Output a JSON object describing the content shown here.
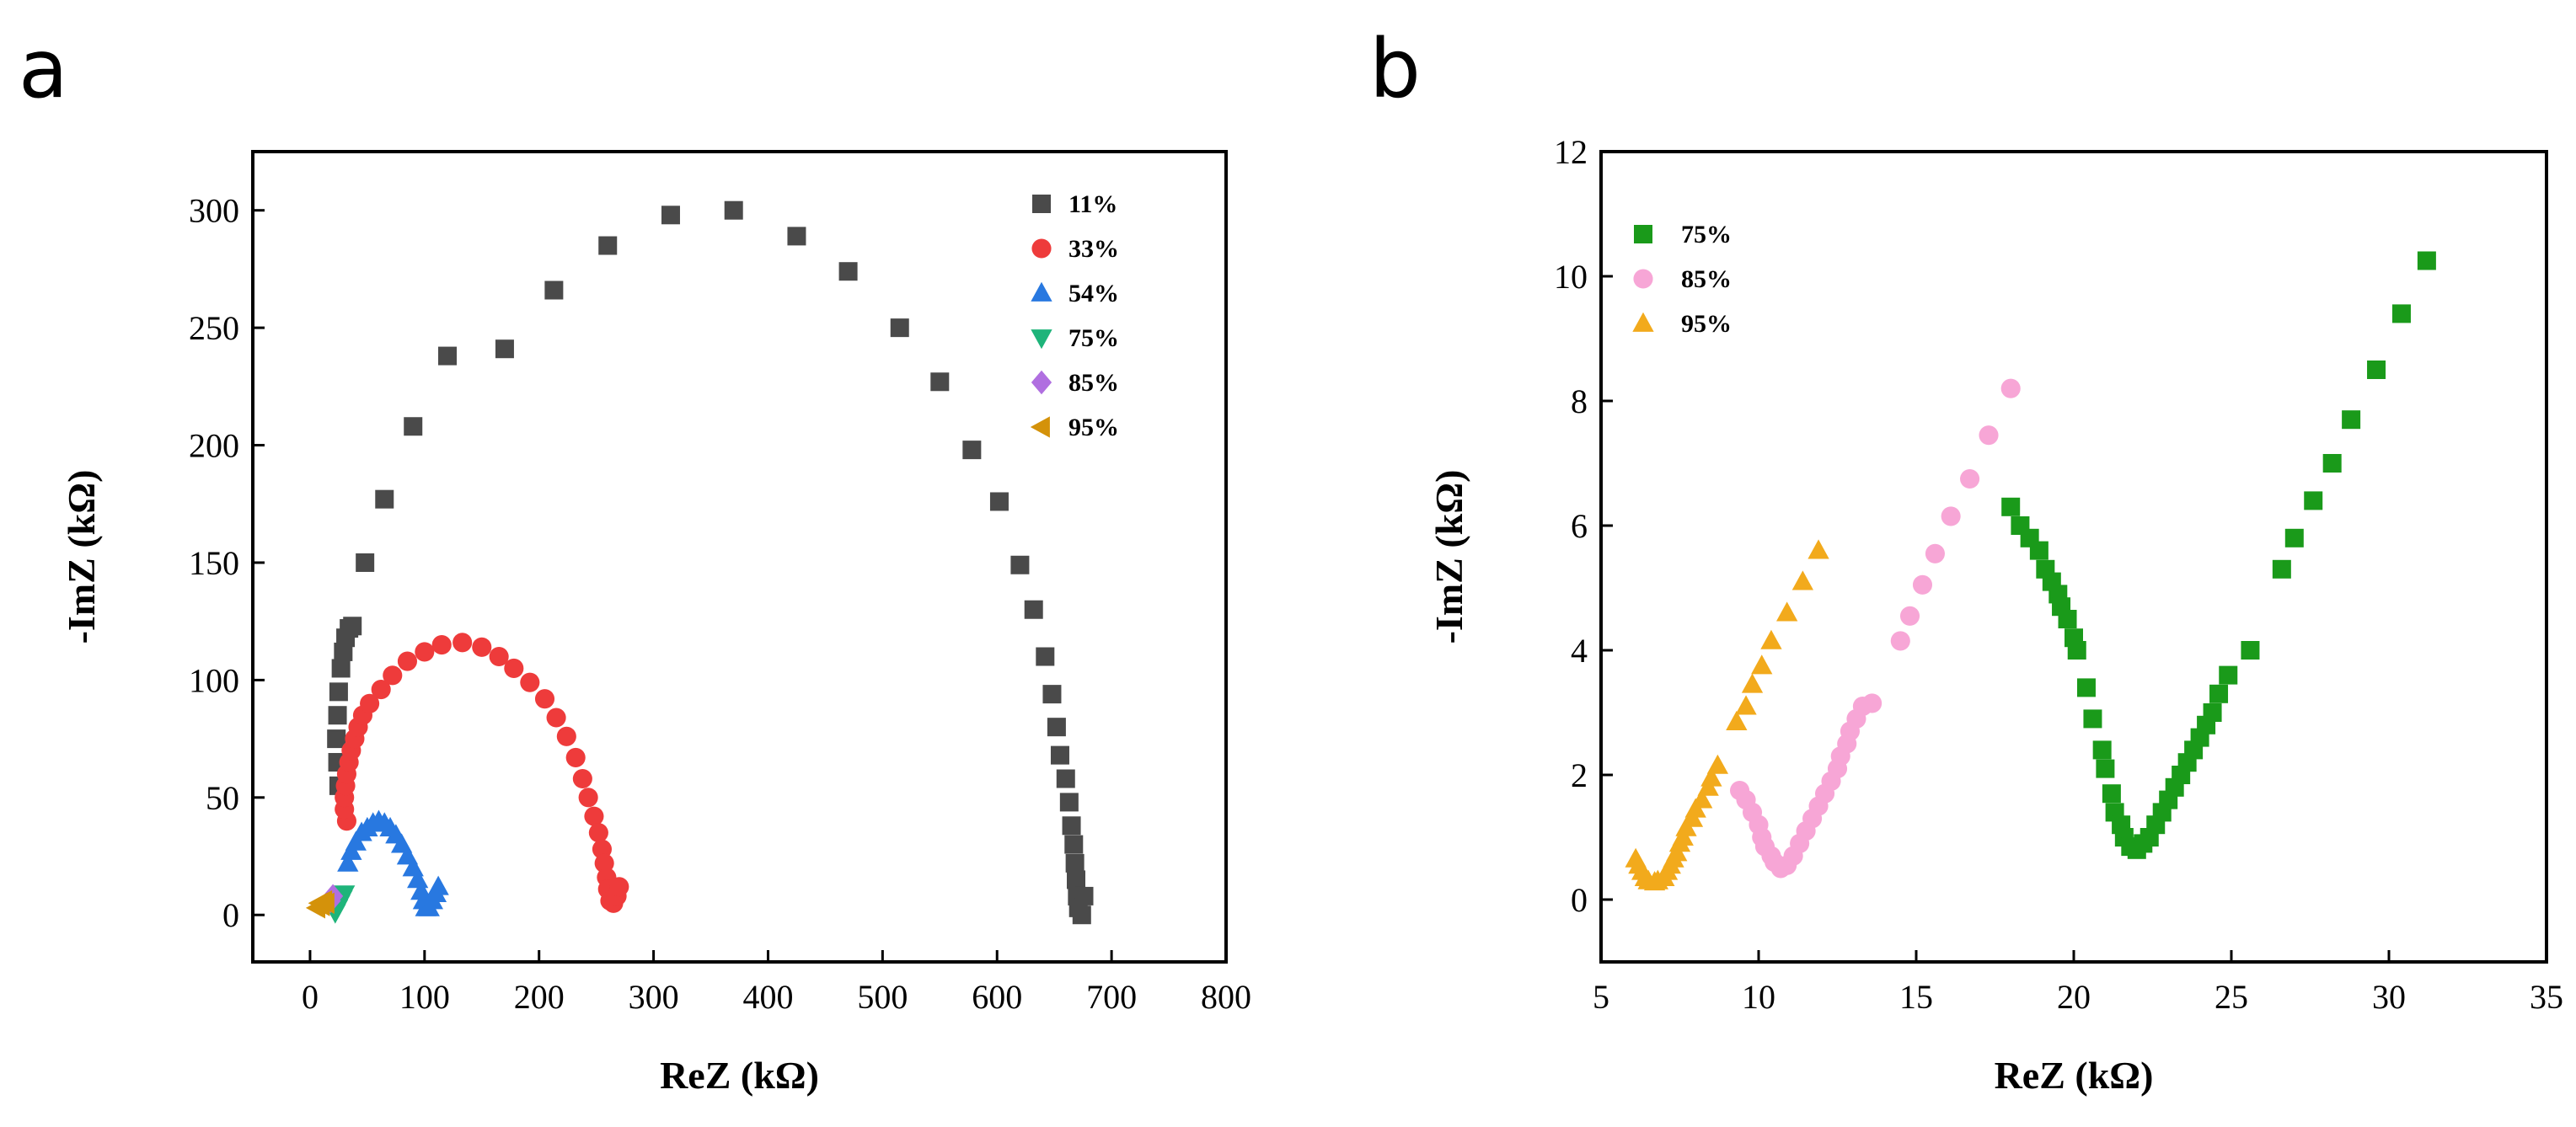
{
  "figure": {
    "panels": [
      {
        "letter": "a"
      },
      {
        "letter": "b"
      }
    ]
  },
  "chart_data": [
    {
      "panel": "a",
      "type": "scatter",
      "title": "",
      "xlabel": "ReZ (kΩ)",
      "ylabel": "-ImZ (kΩ)",
      "xlim": [
        -50,
        800
      ],
      "ylim": [
        -20,
        325
      ],
      "xticks": [
        0,
        100,
        200,
        300,
        400,
        500,
        600,
        700,
        800
      ],
      "yticks": [
        0,
        50,
        100,
        150,
        200,
        250,
        300
      ],
      "grid": false,
      "legend_position": "top-right",
      "series": [
        {
          "name": "11%",
          "marker": "square",
          "color": "#4a4a4a",
          "points": [
            [
              25,
              55
            ],
            [
              24,
              65
            ],
            [
              23,
              75
            ],
            [
              24,
              85
            ],
            [
              25,
              95
            ],
            [
              27,
              105
            ],
            [
              29,
              112
            ],
            [
              31,
              118
            ],
            [
              34,
              122
            ],
            [
              37,
              123
            ],
            [
              48,
              150
            ],
            [
              65,
              177
            ],
            [
              90,
              208
            ],
            [
              120,
              238
            ],
            [
              170,
              241
            ],
            [
              213,
              266
            ],
            [
              260,
              285
            ],
            [
              315,
              298
            ],
            [
              370,
              300
            ],
            [
              425,
              289
            ],
            [
              470,
              274
            ],
            [
              515,
              250
            ],
            [
              550,
              227
            ],
            [
              578,
              198
            ],
            [
              602,
              176
            ],
            [
              620,
              149
            ],
            [
              632,
              130
            ],
            [
              642,
              110
            ],
            [
              648,
              94
            ],
            [
              652,
              80
            ],
            [
              655,
              68
            ],
            [
              660,
              58
            ],
            [
              663,
              48
            ],
            [
              665,
              38
            ],
            [
              667,
              30
            ],
            [
              668,
              22
            ],
            [
              669,
              15
            ],
            [
              670,
              8
            ],
            [
              671,
              3
            ],
            [
              676,
              8
            ],
            [
              674,
              0
            ]
          ]
        },
        {
          "name": "33%",
          "marker": "circle",
          "color": "#ee3b3b",
          "points": [
            [
              32,
              40
            ],
            [
              30,
              45
            ],
            [
              30,
              50
            ],
            [
              31,
              55
            ],
            [
              32,
              60
            ],
            [
              34,
              65
            ],
            [
              36,
              70
            ],
            [
              39,
              75
            ],
            [
              42,
              80
            ],
            [
              46,
              85
            ],
            [
              52,
              90
            ],
            [
              62,
              96
            ],
            [
              72,
              102
            ],
            [
              85,
              108
            ],
            [
              100,
              112
            ],
            [
              115,
              115
            ],
            [
              133,
              116
            ],
            [
              150,
              114
            ],
            [
              165,
              110
            ],
            [
              178,
              105
            ],
            [
              192,
              99
            ],
            [
              205,
              92
            ],
            [
              215,
              84
            ],
            [
              224,
              76
            ],
            [
              232,
              67
            ],
            [
              238,
              58
            ],
            [
              243,
              50
            ],
            [
              248,
              42
            ],
            [
              252,
              35
            ],
            [
              255,
              28
            ],
            [
              257,
              22
            ],
            [
              259,
              16
            ],
            [
              260,
              11
            ],
            [
              262,
              6
            ],
            [
              265,
              5
            ],
            [
              268,
              8
            ],
            [
              270,
              12
            ]
          ]
        },
        {
          "name": "54%",
          "marker": "triangle-up",
          "color": "#2878e0",
          "points": [
            [
              33,
              22
            ],
            [
              36,
              27
            ],
            [
              40,
              31
            ],
            [
              45,
              35
            ],
            [
              50,
              37
            ],
            [
              55,
              39
            ],
            [
              60,
              40
            ],
            [
              65,
              39
            ],
            [
              70,
              37
            ],
            [
              75,
              34
            ],
            [
              80,
              30
            ],
            [
              85,
              25
            ],
            [
              90,
              20
            ],
            [
              94,
              15
            ],
            [
              97,
              10
            ],
            [
              99,
              6
            ],
            [
              101,
              3
            ],
            [
              104,
              3
            ],
            [
              107,
              6
            ],
            [
              110,
              9
            ],
            [
              112,
              12
            ]
          ]
        },
        {
          "name": "75%",
          "marker": "triangle-down",
          "color": "#1eb47a",
          "points": [
            [
              22,
              1
            ],
            [
              24,
              3
            ],
            [
              26,
              5
            ],
            [
              28,
              7
            ],
            [
              30,
              9
            ]
          ]
        },
        {
          "name": "85%",
          "marker": "diamond",
          "color": "#b06fe0",
          "points": [
            [
              16,
              5
            ],
            [
              18,
              6
            ],
            [
              20,
              8
            ]
          ]
        },
        {
          "name": "95%",
          "marker": "triangle-left",
          "color": "#d4920a",
          "points": [
            [
              6,
              3
            ],
            [
              8,
              5
            ],
            [
              10,
              4
            ],
            [
              12,
              6
            ],
            [
              14,
              5
            ]
          ]
        }
      ]
    },
    {
      "panel": "b",
      "type": "scatter",
      "title": "",
      "xlabel": "ReZ (kΩ)",
      "ylabel": "-ImZ (kΩ)",
      "xlim": [
        5,
        35
      ],
      "ylim": [
        -1,
        12
      ],
      "xticks": [
        5,
        10,
        15,
        20,
        25,
        30,
        35
      ],
      "yticks": [
        0,
        2,
        4,
        6,
        8,
        10,
        12
      ],
      "grid": false,
      "legend_position": "top-left",
      "series": [
        {
          "name": "75%",
          "marker": "square",
          "color": "#1a9a1a",
          "points": [
            [
              18.0,
              6.3
            ],
            [
              18.3,
              6.0
            ],
            [
              18.6,
              5.8
            ],
            [
              18.9,
              5.6
            ],
            [
              19.1,
              5.3
            ],
            [
              19.3,
              5.1
            ],
            [
              19.5,
              4.9
            ],
            [
              19.6,
              4.7
            ],
            [
              19.8,
              4.5
            ],
            [
              20.0,
              4.2
            ],
            [
              20.1,
              4.0
            ],
            [
              20.4,
              3.4
            ],
            [
              20.6,
              2.9
            ],
            [
              20.9,
              2.4
            ],
            [
              21.0,
              2.1
            ],
            [
              21.2,
              1.7
            ],
            [
              21.3,
              1.4
            ],
            [
              21.5,
              1.2
            ],
            [
              21.6,
              1.0
            ],
            [
              21.8,
              0.85
            ],
            [
              22.0,
              0.8
            ],
            [
              22.2,
              0.9
            ],
            [
              22.4,
              1.0
            ],
            [
              22.6,
              1.2
            ],
            [
              22.8,
              1.4
            ],
            [
              23.0,
              1.6
            ],
            [
              23.2,
              1.8
            ],
            [
              23.4,
              2.0
            ],
            [
              23.6,
              2.2
            ],
            [
              23.8,
              2.4
            ],
            [
              24.0,
              2.6
            ],
            [
              24.2,
              2.8
            ],
            [
              24.4,
              3.0
            ],
            [
              24.6,
              3.3
            ],
            [
              24.9,
              3.6
            ],
            [
              25.6,
              4.0
            ],
            [
              26.6,
              5.3
            ],
            [
              27.0,
              5.8
            ],
            [
              27.6,
              6.4
            ],
            [
              28.2,
              7.0
            ],
            [
              28.8,
              7.7
            ],
            [
              29.6,
              8.5
            ],
            [
              30.4,
              9.4
            ],
            [
              31.2,
              10.25
            ]
          ]
        },
        {
          "name": "85%",
          "marker": "circle",
          "color": "#f7a6d6",
          "points": [
            [
              9.4,
              1.75
            ],
            [
              9.6,
              1.6
            ],
            [
              9.8,
              1.4
            ],
            [
              10.0,
              1.2
            ],
            [
              10.1,
              1.0
            ],
            [
              10.2,
              0.85
            ],
            [
              10.4,
              0.7
            ],
            [
              10.5,
              0.6
            ],
            [
              10.7,
              0.5
            ],
            [
              10.9,
              0.55
            ],
            [
              11.1,
              0.7
            ],
            [
              11.3,
              0.9
            ],
            [
              11.5,
              1.1
            ],
            [
              11.7,
              1.3
            ],
            [
              11.9,
              1.5
            ],
            [
              12.1,
              1.7
            ],
            [
              12.3,
              1.9
            ],
            [
              12.5,
              2.1
            ],
            [
              12.6,
              2.3
            ],
            [
              12.8,
              2.5
            ],
            [
              12.9,
              2.7
            ],
            [
              13.1,
              2.9
            ],
            [
              13.3,
              3.1
            ],
            [
              13.6,
              3.15
            ],
            [
              14.5,
              4.15
            ],
            [
              14.8,
              4.55
            ],
            [
              15.2,
              5.05
            ],
            [
              15.6,
              5.55
            ],
            [
              16.1,
              6.15
            ],
            [
              16.7,
              6.75
            ],
            [
              17.3,
              7.45
            ],
            [
              18.0,
              8.2
            ]
          ]
        },
        {
          "name": "95%",
          "marker": "triangle-up",
          "color": "#f2aa1c",
          "points": [
            [
              6.1,
              0.65
            ],
            [
              6.2,
              0.55
            ],
            [
              6.3,
              0.45
            ],
            [
              6.4,
              0.35
            ],
            [
              6.5,
              0.3
            ],
            [
              6.7,
              0.28
            ],
            [
              6.8,
              0.3
            ],
            [
              7.0,
              0.35
            ],
            [
              7.1,
              0.45
            ],
            [
              7.2,
              0.55
            ],
            [
              7.3,
              0.65
            ],
            [
              7.4,
              0.75
            ],
            [
              7.5,
              0.9
            ],
            [
              7.6,
              1.0
            ],
            [
              7.7,
              1.15
            ],
            [
              7.9,
              1.3
            ],
            [
              8.0,
              1.45
            ],
            [
              8.2,
              1.6
            ],
            [
              8.4,
              1.8
            ],
            [
              8.5,
              1.95
            ],
            [
              8.7,
              2.15
            ],
            [
              9.3,
              2.85
            ],
            [
              9.6,
              3.1
            ],
            [
              9.8,
              3.45
            ],
            [
              10.1,
              3.75
            ],
            [
              10.4,
              4.15
            ],
            [
              10.9,
              4.6
            ],
            [
              11.4,
              5.1
            ],
            [
              11.9,
              5.6
            ]
          ]
        }
      ]
    }
  ]
}
